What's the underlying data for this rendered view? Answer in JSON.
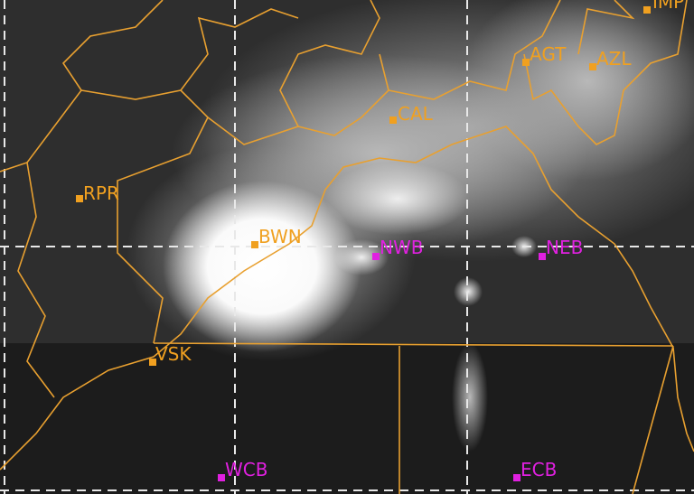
{
  "colors": {
    "station_land": "#f0a020",
    "station_sea": "#e020e0",
    "boundary": "#e8a030",
    "grid": "#e8e8e8"
  },
  "stations": [
    {
      "label": "RPR",
      "type": "land"
    },
    {
      "label": "BWN",
      "type": "land"
    },
    {
      "label": "CAL",
      "type": "land"
    },
    {
      "label": "AGT",
      "type": "land"
    },
    {
      "label": "AZL",
      "type": "land"
    },
    {
      "label": "IMP",
      "type": "land"
    },
    {
      "label": "VSK",
      "type": "land"
    },
    {
      "label": "NWB",
      "type": "sea"
    },
    {
      "label": "NEB",
      "type": "sea"
    },
    {
      "label": "WCB",
      "type": "sea"
    },
    {
      "label": "ECB",
      "type": "sea"
    }
  ]
}
